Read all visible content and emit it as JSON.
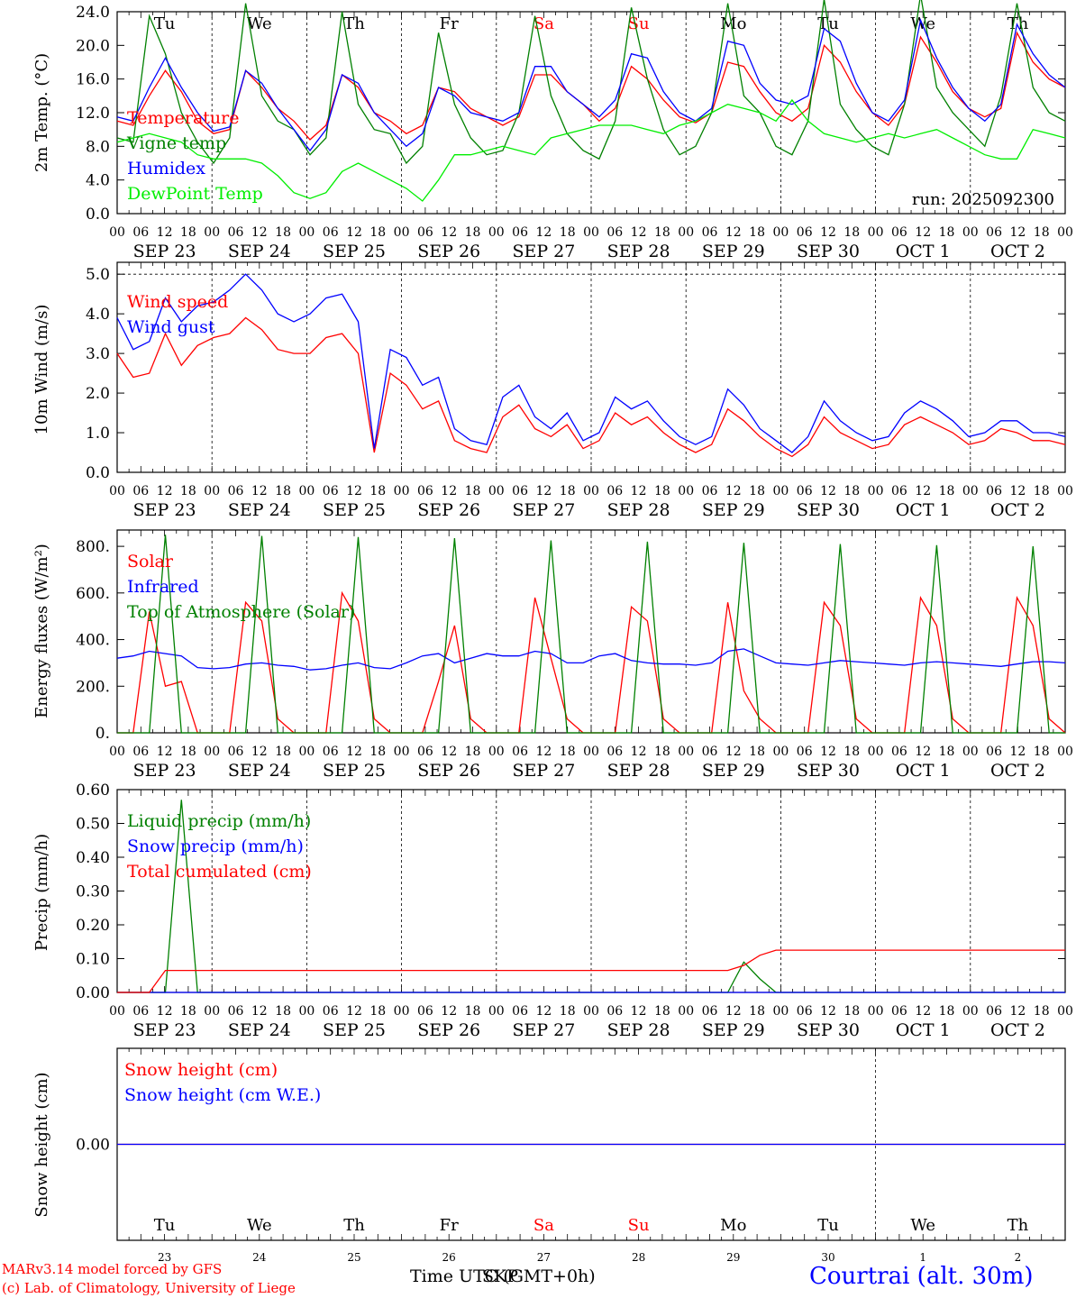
{
  "days": [
    {
      "date": "SEP 23",
      "dow": "Tu",
      "num": "23",
      "weekend": false
    },
    {
      "date": "SEP 24",
      "dow": "We",
      "num": "24",
      "weekend": false
    },
    {
      "date": "SEP 25",
      "dow": "Th",
      "num": "25",
      "weekend": false
    },
    {
      "date": "SEP 26",
      "dow": "Fr",
      "num": "26",
      "weekend": false
    },
    {
      "date": "SEP 27",
      "dow": "Sa",
      "num": "27",
      "weekend": true
    },
    {
      "date": "SEP 28",
      "dow": "Su",
      "num": "28",
      "weekend": true
    },
    {
      "date": "SEP 29",
      "dow": "Mo",
      "num": "29",
      "weekend": false
    },
    {
      "date": "SEP 30",
      "dow": "Tu",
      "num": "30",
      "weekend": false
    },
    {
      "date": "OCT  1",
      "dow": "We",
      "num": "1",
      "weekend": false
    },
    {
      "date": "OCT  2",
      "dow": "Th",
      "num": "2",
      "weekend": false
    }
  ],
  "hour_ticks": [
    "00",
    "06",
    "12",
    "18"
  ],
  "colors": {
    "red": "#ff0000",
    "green": "#008000",
    "blue": "#0000ff",
    "lightgreen": "#00ee00",
    "weekend": "#ff0000",
    "station": "#0000ff"
  },
  "footer": {
    "model": "MARv3.14 model forced by GFS",
    "lab": "(c) Lab. of Climatology, University of Liege",
    "time_label": "Time UTC (GMT+0h)",
    "overlap_label": "SKP",
    "station": "Courtrai (alt. 30m)"
  },
  "chart_data": [
    {
      "type": "line",
      "id": "temp",
      "ylabel": "2m Temp. (°C)",
      "ylim": [
        0,
        24
      ],
      "yticks": [
        "0.0",
        "4.0",
        "8.0",
        "12.0",
        "16.0",
        "20.0",
        "24.0"
      ],
      "annotation": "run: 2025092300",
      "series": [
        {
          "name": "Temperature",
          "color": "red",
          "values": [
            11,
            10.5,
            14,
            17,
            14.5,
            11,
            9.5,
            10,
            17,
            15,
            12.5,
            11,
            8.8,
            10.5,
            16.5,
            15,
            12,
            11,
            9.5,
            10.5,
            15,
            14.5,
            12.5,
            11.5,
            10.5,
            11.5,
            16.5,
            16.5,
            14.5,
            13,
            11,
            12.5,
            17.5,
            16,
            13.5,
            11.5,
            10.8,
            12,
            18,
            17.5,
            14.5,
            12,
            11,
            12.5,
            20,
            18,
            14.5,
            12,
            10.5,
            13,
            21,
            18,
            14.5,
            12.5,
            11.5,
            12.5,
            21.5,
            18,
            16,
            15
          ]
        },
        {
          "name": "Vigne temp",
          "color": "green",
          "values": [
            9,
            8.5,
            23.5,
            19,
            12,
            8.5,
            6,
            9,
            25,
            14,
            11,
            10,
            7,
            9,
            24,
            13,
            10,
            9.5,
            6,
            8,
            21.5,
            13,
            9,
            7,
            7.5,
            12,
            23.5,
            14,
            9.5,
            7.5,
            6.5,
            11,
            24.5,
            16,
            10,
            7,
            8,
            12,
            25,
            14,
            12,
            8,
            7,
            11,
            25.5,
            13,
            10,
            8,
            7,
            13,
            26,
            15,
            12,
            10,
            8,
            14,
            25,
            15,
            12,
            11
          ]
        },
        {
          "name": "Humidex",
          "color": "blue",
          "values": [
            11.5,
            11,
            15,
            18.5,
            15,
            12,
            9.8,
            10.3,
            17,
            15.5,
            12.5,
            10,
            7.5,
            10,
            16.5,
            15.5,
            12,
            10,
            8,
            9.5,
            15,
            14,
            12,
            11.5,
            11,
            12,
            17.5,
            17.5,
            14.5,
            13,
            11.5,
            13.5,
            19,
            18.5,
            14.5,
            12,
            11,
            12.5,
            20.5,
            20,
            15.5,
            13.5,
            13,
            14,
            22,
            20.5,
            15.5,
            12,
            11,
            13.5,
            23,
            18.5,
            15,
            12.5,
            11,
            13,
            22.5,
            19,
            16.5,
            15
          ]
        },
        {
          "name": "DewPoint Temp",
          "color": "lightgreen",
          "values": [
            8.5,
            9,
            9.5,
            9,
            8.5,
            7,
            6.5,
            6.5,
            6.5,
            6,
            4.5,
            2.5,
            1.8,
            2.5,
            5,
            6,
            5,
            4,
            3,
            1.5,
            4,
            7,
            7,
            7.5,
            8,
            7.5,
            7,
            9,
            9.5,
            10,
            10.5,
            10.5,
            10.5,
            10,
            9.5,
            10.5,
            11,
            12,
            13,
            12.5,
            12,
            11,
            13.5,
            11,
            9.5,
            9,
            8.5,
            9,
            9.5,
            9,
            9.5,
            10,
            9,
            8,
            7,
            6.5,
            6.5,
            10,
            9.5,
            9
          ]
        }
      ]
    },
    {
      "type": "line",
      "id": "wind",
      "ylabel": "10m Wind (m/s)",
      "ylim": [
        0,
        5.3
      ],
      "yticks": [
        "0.0",
        "1.0",
        "2.0",
        "3.0",
        "4.0",
        "5.0"
      ],
      "series": [
        {
          "name": "Wind speed",
          "color": "red",
          "values": [
            3,
            2.4,
            2.5,
            3.5,
            2.7,
            3.2,
            3.4,
            3.5,
            3.9,
            3.6,
            3.1,
            3,
            3,
            3.4,
            3.5,
            3,
            0.5,
            2.5,
            2.2,
            1.6,
            1.8,
            0.8,
            0.6,
            0.5,
            1.4,
            1.7,
            1.1,
            0.9,
            1.2,
            0.6,
            0.8,
            1.5,
            1.2,
            1.4,
            1.0,
            0.7,
            0.5,
            0.7,
            1.6,
            1.3,
            0.9,
            0.6,
            0.4,
            0.7,
            1.4,
            1.0,
            0.8,
            0.6,
            0.7,
            1.2,
            1.4,
            1.2,
            1.0,
            0.7,
            0.8,
            1.1,
            1.0,
            0.8,
            0.8,
            0.7
          ]
        },
        {
          "name": "Wind gust",
          "color": "blue",
          "values": [
            3.9,
            3.1,
            3.3,
            4.4,
            3.8,
            4.2,
            4.3,
            4.6,
            5,
            4.6,
            4,
            3.8,
            4,
            4.4,
            4.5,
            3.8,
            0.6,
            3.1,
            2.9,
            2.2,
            2.4,
            1.1,
            0.8,
            0.7,
            1.9,
            2.2,
            1.4,
            1.1,
            1.5,
            0.8,
            1.0,
            1.9,
            1.6,
            1.8,
            1.3,
            0.9,
            0.7,
            0.9,
            2.1,
            1.7,
            1.1,
            0.8,
            0.5,
            0.9,
            1.8,
            1.3,
            1.0,
            0.8,
            0.9,
            1.5,
            1.8,
            1.6,
            1.3,
            0.9,
            1.0,
            1.3,
            1.3,
            1.0,
            1.0,
            0.9
          ]
        }
      ]
    },
    {
      "type": "line",
      "id": "flux",
      "ylabel": "Energy fluxes (W/m²)",
      "ylim": [
        0,
        870
      ],
      "yticks": [
        "0.",
        "200.",
        "400.",
        "600.",
        "800."
      ],
      "series": [
        {
          "name": "Solar",
          "color": "red",
          "values": [
            0,
            0,
            520,
            200,
            220,
            0,
            0,
            0,
            560,
            480,
            60,
            0,
            0,
            0,
            600,
            480,
            60,
            0,
            0,
            0,
            220,
            460,
            60,
            0,
            0,
            0,
            580,
            320,
            60,
            0,
            0,
            0,
            540,
            480,
            60,
            0,
            0,
            0,
            560,
            180,
            60,
            0,
            0,
            0,
            560,
            460,
            60,
            0,
            0,
            0,
            580,
            460,
            60,
            0,
            0,
            0,
            580,
            460,
            60,
            0
          ]
        },
        {
          "name": "Infrared",
          "color": "blue",
          "values": [
            320,
            330,
            350,
            340,
            330,
            280,
            275,
            280,
            295,
            300,
            290,
            285,
            270,
            275,
            290,
            300,
            280,
            275,
            300,
            330,
            340,
            300,
            320,
            340,
            330,
            330,
            350,
            340,
            300,
            300,
            330,
            340,
            310,
            300,
            295,
            295,
            290,
            300,
            350,
            360,
            330,
            300,
            295,
            290,
            300,
            310,
            305,
            300,
            295,
            290,
            300,
            305,
            300,
            295,
            290,
            285,
            295,
            305,
            305,
            300
          ]
        },
        {
          "name": "Top of Atmosphere (Solar)",
          "color": "green",
          "values": [
            0,
            0,
            0,
            850,
            0,
            0,
            0,
            0,
            0,
            845,
            0,
            0,
            0,
            0,
            0,
            840,
            0,
            0,
            0,
            0,
            0,
            835,
            0,
            0,
            0,
            0,
            0,
            825,
            0,
            0,
            0,
            0,
            0,
            820,
            0,
            0,
            0,
            0,
            0,
            815,
            0,
            0,
            0,
            0,
            0,
            810,
            0,
            0,
            0,
            0,
            0,
            805,
            0,
            0,
            0,
            0,
            0,
            800,
            0,
            0
          ]
        }
      ]
    },
    {
      "type": "line",
      "id": "precip",
      "ylabel": "Precip (mm/h)",
      "ylim": [
        0,
        0.6
      ],
      "yticks": [
        "0.00",
        "0.10",
        "0.20",
        "0.30",
        "0.40",
        "0.50",
        "0.60"
      ],
      "series": [
        {
          "name": "Liquid precip (mm/h)",
          "color": "green",
          "values": [
            0,
            0,
            0,
            0,
            0.57,
            0,
            0,
            0,
            0,
            0,
            0,
            0,
            0,
            0,
            0,
            0,
            0,
            0,
            0,
            0,
            0,
            0,
            0,
            0,
            0,
            0,
            0,
            0,
            0,
            0,
            0,
            0,
            0,
            0,
            0,
            0,
            0,
            0,
            0,
            0.09,
            0.04,
            0,
            0,
            0,
            0,
            0,
            0,
            0,
            0,
            0,
            0,
            0,
            0,
            0,
            0,
            0,
            0,
            0,
            0,
            0
          ]
        },
        {
          "name": "Snow precip (mm/h)",
          "color": "blue",
          "values": [
            0,
            0,
            0,
            0,
            0,
            0,
            0,
            0,
            0,
            0,
            0,
            0,
            0,
            0,
            0,
            0,
            0,
            0,
            0,
            0,
            0,
            0,
            0,
            0,
            0,
            0,
            0,
            0,
            0,
            0,
            0,
            0,
            0,
            0,
            0,
            0,
            0,
            0,
            0,
            0,
            0,
            0,
            0,
            0,
            0,
            0,
            0,
            0,
            0,
            0,
            0,
            0,
            0,
            0,
            0,
            0,
            0,
            0,
            0,
            0
          ]
        },
        {
          "name": "Total cumulated (cm)",
          "color": "red",
          "values": [
            0,
            0,
            0,
            0.065,
            0.065,
            0.065,
            0.065,
            0.065,
            0.065,
            0.065,
            0.065,
            0.065,
            0.065,
            0.065,
            0.065,
            0.065,
            0.065,
            0.065,
            0.065,
            0.065,
            0.065,
            0.065,
            0.065,
            0.065,
            0.065,
            0.065,
            0.065,
            0.065,
            0.065,
            0.065,
            0.065,
            0.065,
            0.065,
            0.065,
            0.065,
            0.065,
            0.065,
            0.065,
            0.065,
            0.08,
            0.11,
            0.125,
            0.125,
            0.125,
            0.125,
            0.125,
            0.125,
            0.125,
            0.125,
            0.125,
            0.125,
            0.125,
            0.125,
            0.125,
            0.125,
            0.125,
            0.125,
            0.125,
            0.125,
            0.125
          ]
        }
      ]
    },
    {
      "type": "line",
      "id": "snow",
      "ylabel": "Snow height (cm)",
      "ylim": [
        -1,
        1
      ],
      "yticks": [
        "0.00"
      ],
      "series": [
        {
          "name": "Snow height (cm)",
          "color": "red",
          "values": [
            0,
            0,
            0,
            0,
            0,
            0,
            0,
            0,
            0,
            0
          ]
        },
        {
          "name": "Snow height (cm W.E.)",
          "color": "blue",
          "values": [
            0,
            0,
            0,
            0,
            0,
            0,
            0,
            0,
            0,
            0
          ]
        }
      ]
    }
  ]
}
